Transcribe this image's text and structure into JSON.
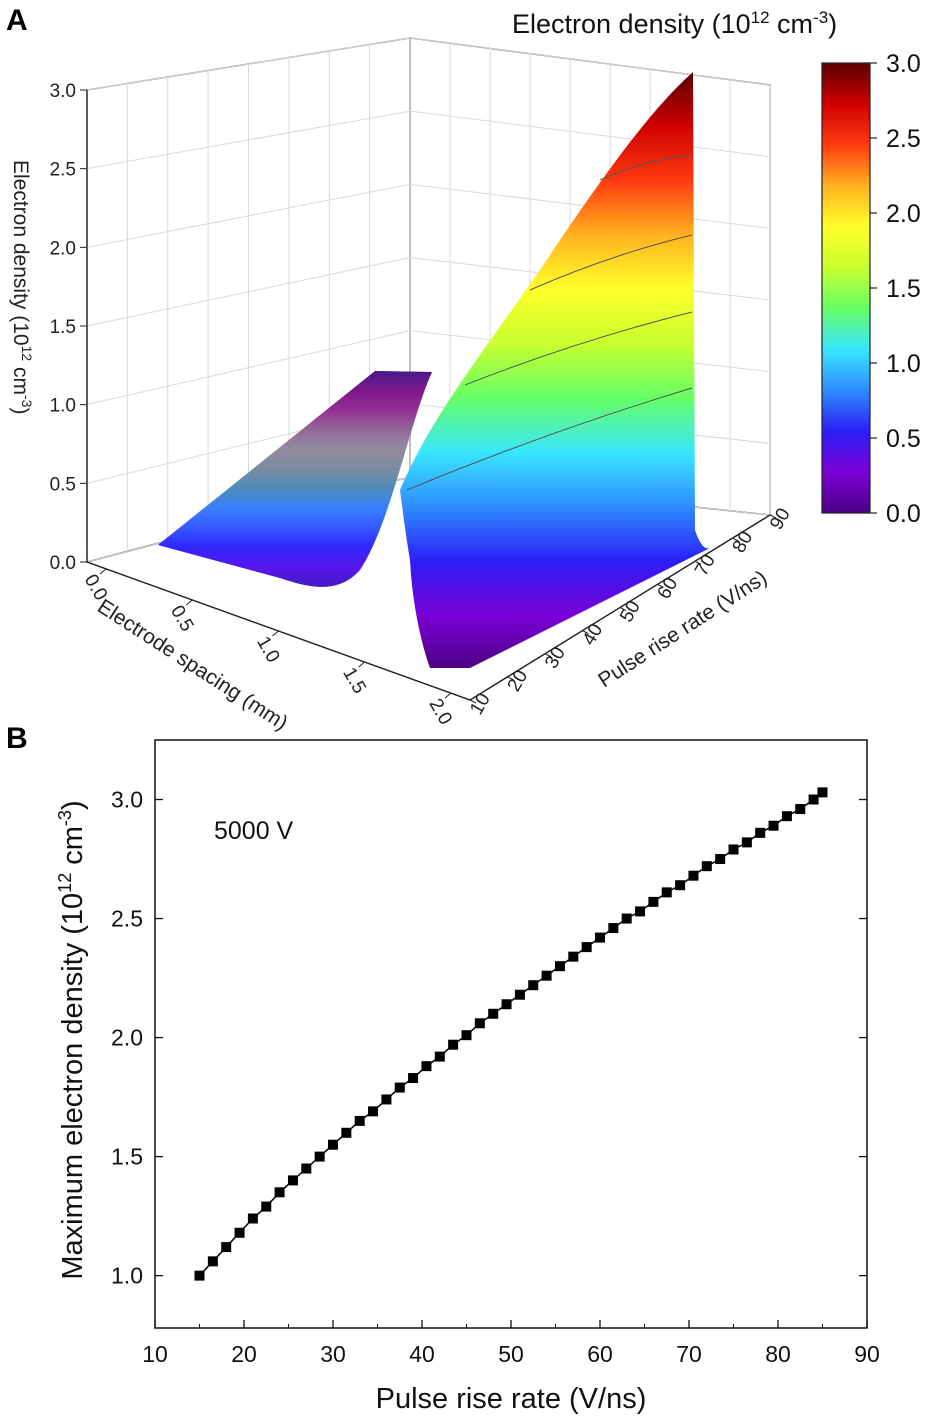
{
  "chart_data": [
    {
      "panel": "A",
      "type": "surface",
      "colorbar": {
        "title_main": "Electron density (10",
        "title_exp": "12",
        "title_unit": " cm",
        "title_unit_exp": "-3",
        "title_close": ")",
        "ticks": [
          "3.0",
          "2.5",
          "2.0",
          "1.5",
          "1.0",
          "0.5",
          "0.0"
        ],
        "range": [
          0,
          3.0
        ],
        "colors": [
          "#4b0082",
          "#7b00d6",
          "#2a1ef5",
          "#2f8cff",
          "#39e6ff",
          "#66ff66",
          "#c8ff2e",
          "#ffff2a",
          "#ffb21f",
          "#ff3a10",
          "#d00000",
          "#5a0000"
        ]
      },
      "z_axis": {
        "label_main": "Electron density (10",
        "label_exp": "12",
        "label_unit": " cm",
        "label_unit_exp": "-3",
        "label_close": ")",
        "ticks": [
          "3.0",
          "2.5",
          "2.0",
          "1.5",
          "1.0",
          "0.5",
          "0.0"
        ]
      },
      "x_axis": {
        "label": "Electrode spacing (mm)",
        "ticks": [
          "0.0",
          "0.5",
          "1.0",
          "1.5",
          "2.0"
        ]
      },
      "y_axis": {
        "label": "Pulse rise rate (V/ns)",
        "ticks": [
          "10",
          "20",
          "30",
          "40",
          "50",
          "60",
          "70",
          "80",
          "90"
        ]
      }
    },
    {
      "panel": "B",
      "type": "scatter",
      "annotation": "5000 V",
      "xlabel": "Pulse rise rate (V/ns)",
      "ylabel_main": "Maximum electron density (10",
      "ylabel_exp": "12",
      "ylabel_unit": " cm",
      "ylabel_unit_exp": "-3",
      "ylabel_close": ")",
      "xlim": [
        10,
        90
      ],
      "ylim": [
        0.78,
        3.25
      ],
      "x_ticks": [
        10,
        20,
        30,
        40,
        50,
        60,
        70,
        80,
        90
      ],
      "y_ticks": [
        1.0,
        1.5,
        2.0,
        2.5,
        3.0
      ],
      "x_tick_labels": [
        "10",
        "20",
        "30",
        "40",
        "50",
        "60",
        "70",
        "80",
        "90"
      ],
      "y_tick_labels": [
        "1.0",
        "1.5",
        "2.0",
        "2.5",
        "3.0"
      ],
      "x": [
        15,
        16.5,
        18,
        19.5,
        21,
        22.5,
        24,
        25.5,
        27,
        28.5,
        30,
        31.5,
        33,
        34.5,
        36,
        37.5,
        39,
        40.5,
        42,
        43.5,
        45,
        46.5,
        48,
        49.5,
        51,
        52.5,
        54,
        55.5,
        57,
        58.5,
        60,
        61.5,
        63,
        64.5,
        66,
        67.5,
        69,
        70.5,
        72,
        73.5,
        75,
        76.5,
        78,
        79.5,
        81,
        82.5,
        84,
        85
      ],
      "y": [
        1.0,
        1.06,
        1.12,
        1.18,
        1.24,
        1.29,
        1.35,
        1.4,
        1.45,
        1.5,
        1.55,
        1.6,
        1.65,
        1.69,
        1.74,
        1.79,
        1.83,
        1.88,
        1.92,
        1.97,
        2.01,
        2.06,
        2.1,
        2.14,
        2.18,
        2.22,
        2.26,
        2.3,
        2.34,
        2.38,
        2.42,
        2.46,
        2.5,
        2.53,
        2.57,
        2.61,
        2.64,
        2.68,
        2.72,
        2.75,
        2.79,
        2.82,
        2.86,
        2.89,
        2.93,
        2.96,
        3.0,
        3.03
      ]
    }
  ],
  "panel_labels": {
    "a": "A",
    "b": "B"
  }
}
